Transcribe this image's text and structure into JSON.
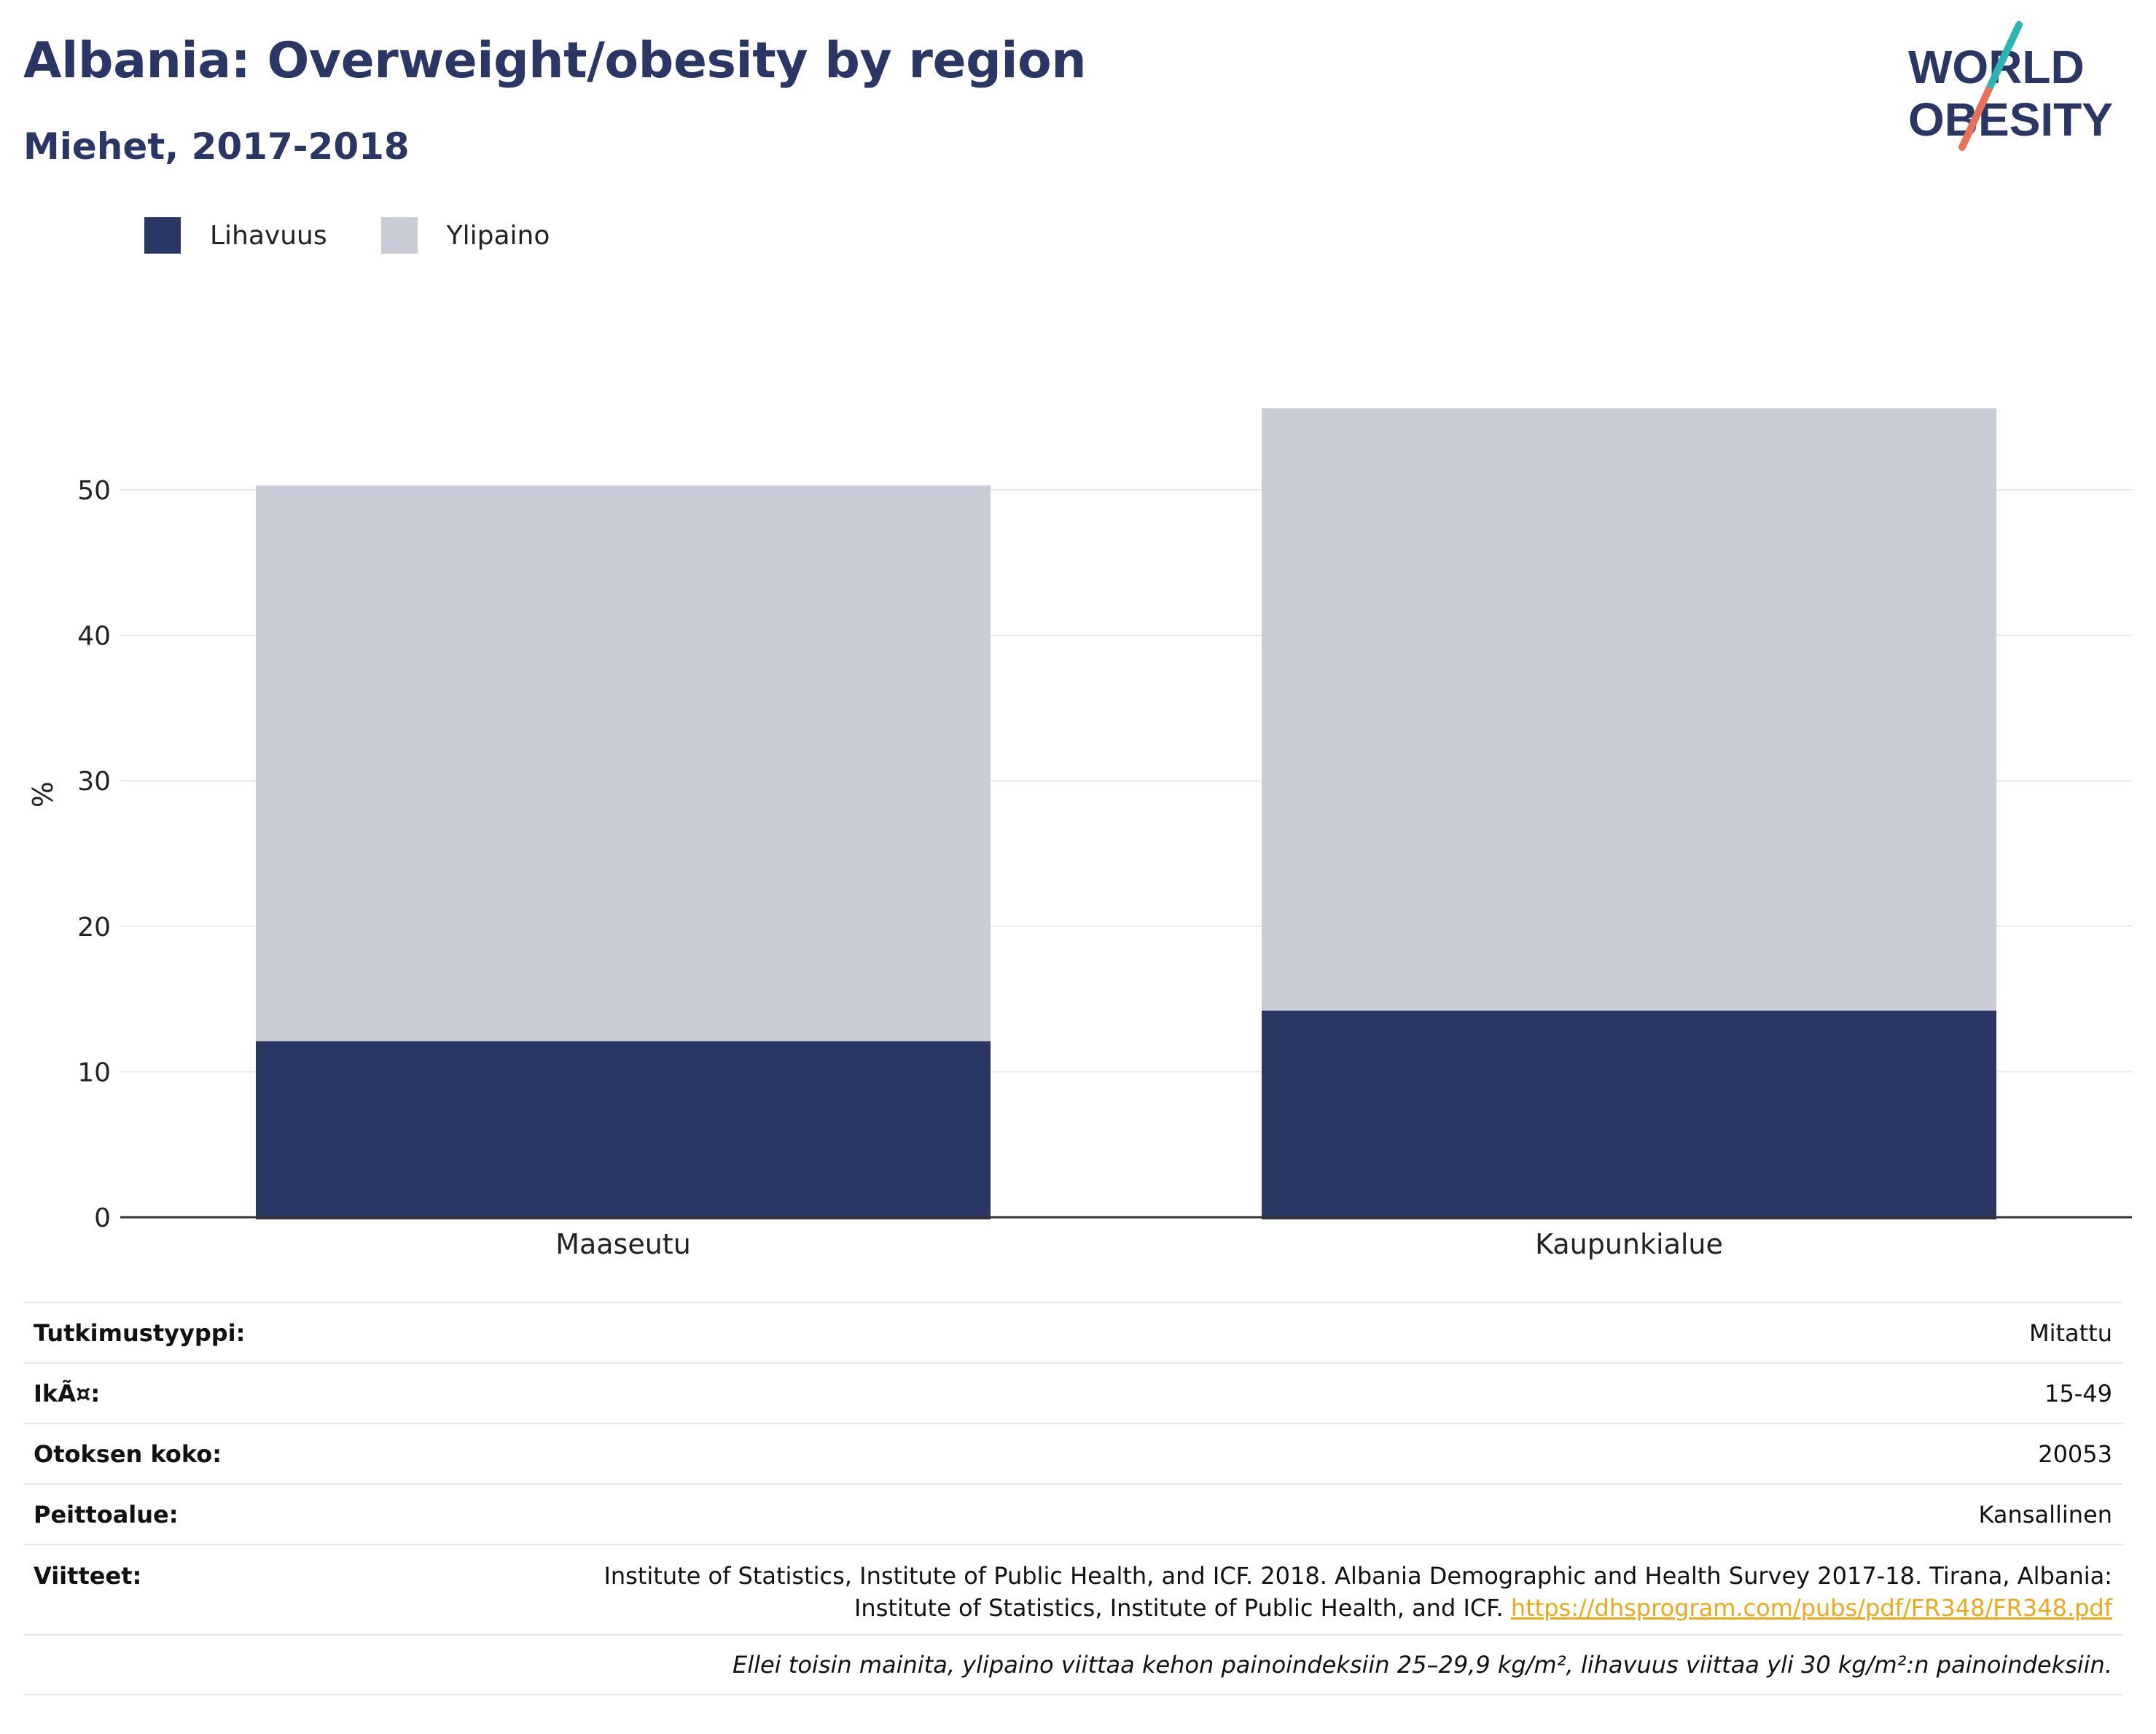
{
  "header": {
    "title": "Albania: Overweight/obesity by region",
    "subtitle": "Miehet, 2017-2018"
  },
  "logo": {
    "line1": "WORLD",
    "line2": "OBESITY"
  },
  "colors": {
    "obesity": "#2a3764",
    "overweight": "#c9ccd7",
    "title": "#2a3764",
    "link": "#e8a820",
    "logo_teal": "#2cb5b0",
    "logo_coral": "#e8715c"
  },
  "legend": [
    {
      "label": "Lihavuus",
      "color": "#2a3764"
    },
    {
      "label": "Ylipaino",
      "color": "#c9ccd7"
    }
  ],
  "chart_data": {
    "type": "bar",
    "stacked": true,
    "categories": [
      "Maaseutu",
      "Kaupunkialue"
    ],
    "series": [
      {
        "name": "Lihavuus",
        "values": [
          12.1,
          14.2
        ]
      },
      {
        "name": "Ylipaino",
        "values": [
          38.2,
          41.4
        ]
      }
    ],
    "ylabel": "%",
    "ylim": [
      0,
      58
    ],
    "yticks": [
      0,
      10,
      20,
      30,
      40,
      50
    ],
    "grid": true,
    "legend_position": "top-left"
  },
  "info": {
    "study_type": {
      "label": "Tutkimustyyppi:",
      "value": "Mitattu"
    },
    "age": {
      "label": "IkÃ¤:",
      "value": "15-49"
    },
    "sample_size": {
      "label": "Otoksen koko:",
      "value": "20053"
    },
    "coverage": {
      "label": "Peittoalue:",
      "value": "Kansallinen"
    },
    "references": {
      "label": "Viitteet:",
      "line1": "Institute of Statistics, Institute of Public Health, and ICF. 2018. Albania Demographic and Health Survey 2017-18. Tirana, Albania:",
      "line2": "Institute of Statistics, Institute of Public Health, and ICF.",
      "url": "https://dhsprogram.com/pubs/pdf/FR348/FR348.pdf"
    },
    "note": "Ellei toisin mainita, ylipaino viittaa kehon painoindeksiin 25–29,9 kg/m², lihavuus viittaa yli 30 kg/m²:n painoindeksiin."
  }
}
